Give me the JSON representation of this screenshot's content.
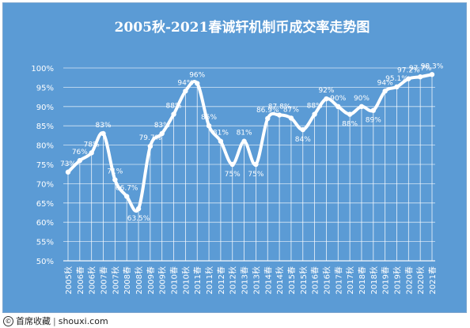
{
  "chart_data": {
    "type": "line",
    "title": "2005秋-2021春诚轩机制币成交率走势图",
    "xlabel": "",
    "ylabel": "",
    "ylim": [
      50,
      100
    ],
    "yticks": [
      "50%",
      "55%",
      "60%",
      "65%",
      "70%",
      "75%",
      "80%",
      "85%",
      "90%",
      "95%",
      "100%"
    ],
    "grid": true,
    "legend": "none",
    "categories": [
      "2005秋",
      "2006春",
      "2006秋",
      "2007春",
      "2007秋",
      "2008春",
      "2008秋",
      "2009春",
      "2009秋",
      "2010春",
      "2010秋",
      "2011春",
      "2011秋",
      "2012春",
      "2012秋",
      "2013春",
      "2013秋",
      "2014春",
      "2014秋",
      "2015春",
      "2015秋",
      "2016春",
      "2016秋",
      "2017春",
      "2017秋",
      "2018春",
      "2018秋",
      "2019春",
      "2019秋",
      "2020春",
      "2020秋",
      "2021春"
    ],
    "values": [
      73,
      76,
      78,
      83,
      71,
      66.7,
      63.5,
      79.7,
      83,
      88,
      94,
      96,
      85,
      81,
      75,
      81,
      75,
      86.9,
      87.8,
      87,
      84,
      88,
      92,
      90,
      88,
      90,
      89,
      94,
      95.1,
      97.2,
      97.7,
      98.3
    ],
    "data_labels": [
      "73%",
      "76%",
      "78%",
      "83%",
      "71%",
      "66.7%",
      "63.5%",
      "79.7%",
      "83%",
      "88%",
      "94%",
      "96%",
      "85%",
      "81%",
      "75%",
      "81%",
      "75%",
      "86.9%",
      "87.8%",
      "87%",
      "84%",
      "88%",
      "92%",
      "90%",
      "88%",
      "90%",
      "89%",
      "94%",
      "95.1%",
      "97.2%",
      "97.7%",
      "98.3%"
    ],
    "colors": {
      "background": "#5b9bd5",
      "line": "#ffffff",
      "text": "#ffffff",
      "grid": "#ffffff"
    }
  },
  "footer": {
    "site_name": "首席收藏",
    "separator": "|",
    "url": "shouxi.com"
  }
}
